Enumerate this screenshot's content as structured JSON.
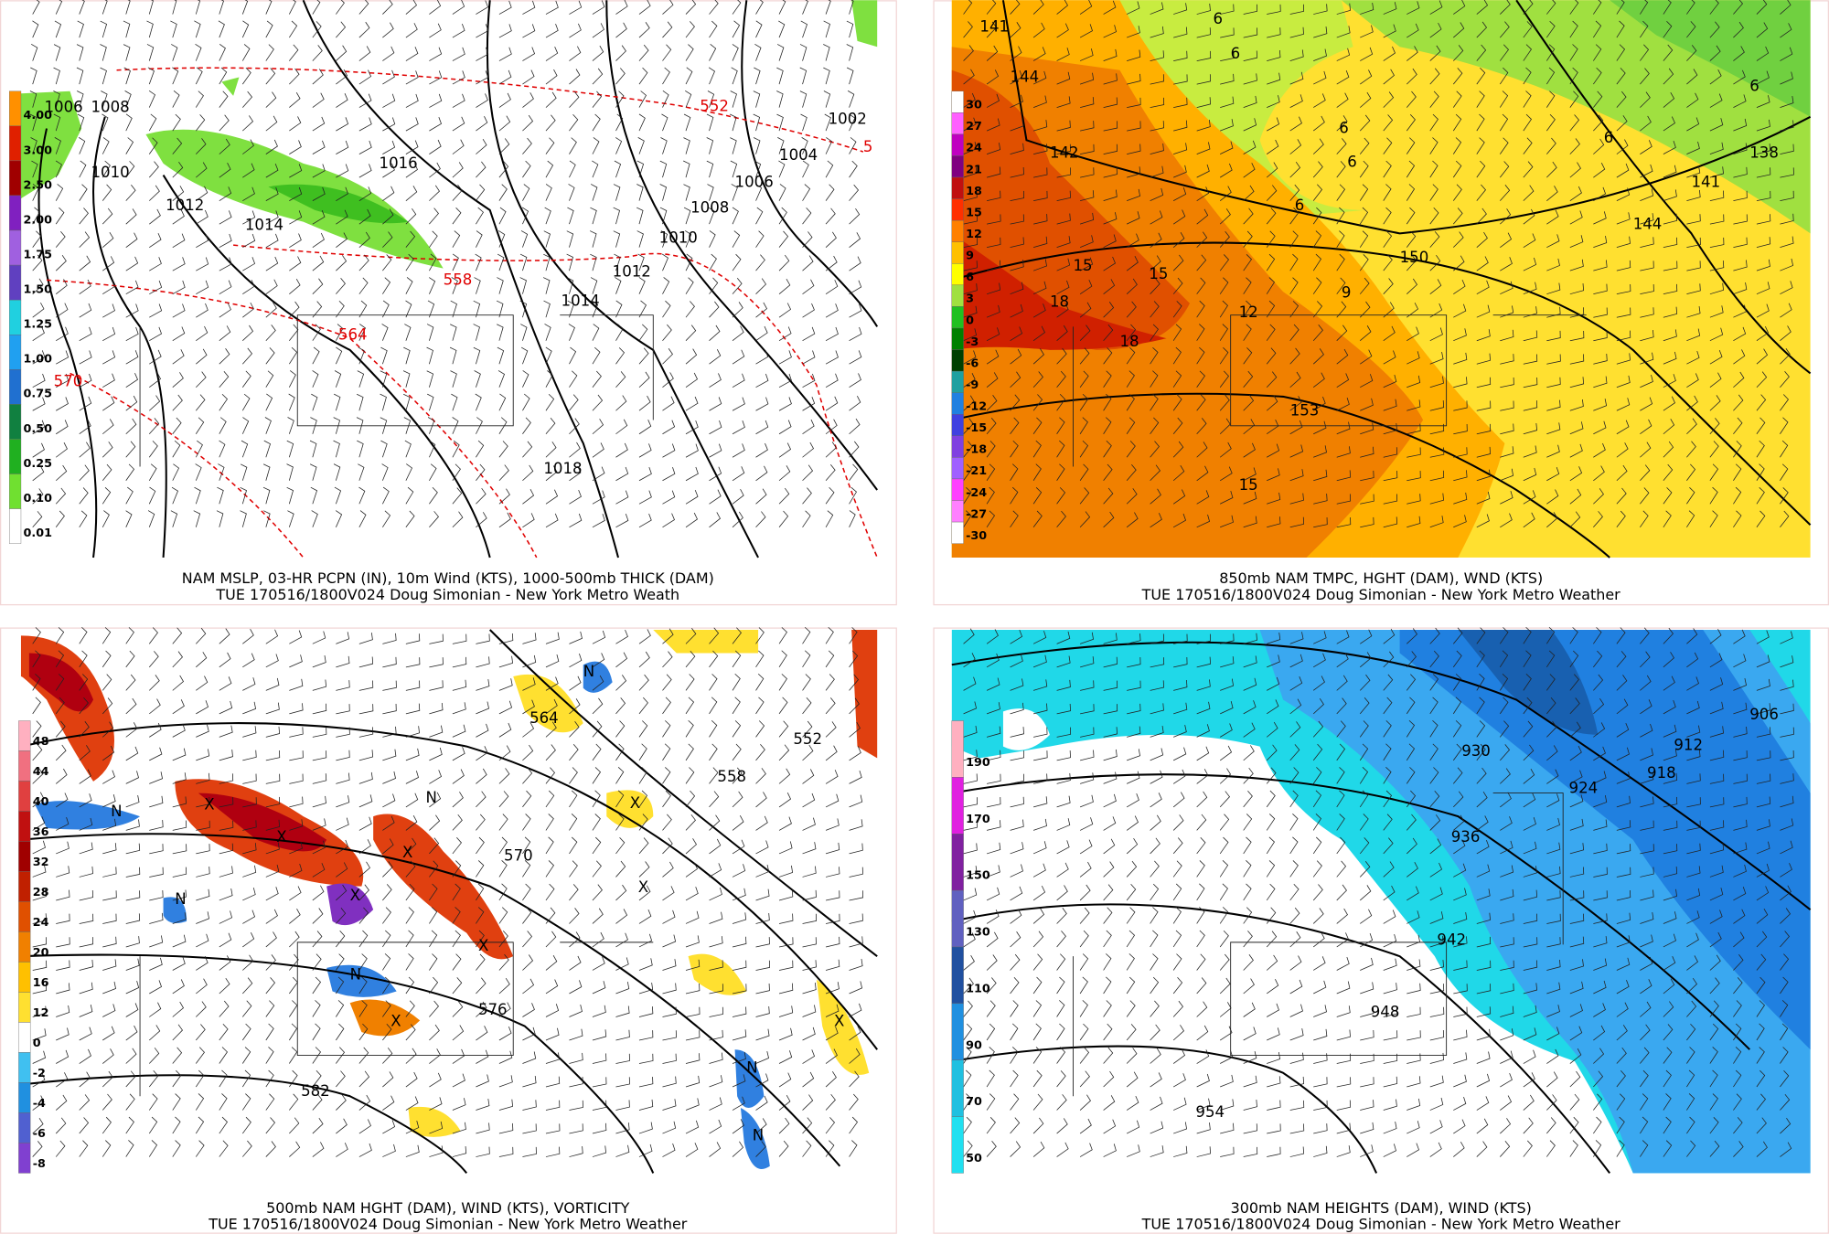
{
  "panels": [
    {
      "caption": [
        "NAM MSLP, 03-HR PCPN (IN), 10m Wind (KTS), 1000-500mb THICK (DAM)",
        "TUE 170516/1800V024 Doug Simonian - New York Metro Weath"
      ],
      "colorbar": [
        "4.00",
        "3.00",
        "2.50",
        "2.00",
        "1.75",
        "1.50",
        "1.25",
        "1.00",
        "0.75",
        "0.50",
        "0.25",
        "0.10",
        "0.01"
      ],
      "contour_labels": [
        "1006",
        "1008",
        "1010",
        "1012",
        "1014",
        "1016",
        "1002",
        "1004",
        "1006",
        "1008",
        "1010",
        "1012",
        "1014",
        "1018"
      ],
      "thickness_labels": [
        "552",
        "558",
        "564",
        "570",
        "5"
      ]
    },
    {
      "caption": [
        "850mb NAM TMPC, HGHT (DAM), WND (KTS)",
        "TUE 170516/1800V024 Doug Simonian - New York Metro Weather"
      ],
      "colorbar": [
        "30",
        "27",
        "24",
        "21",
        "18",
        "15",
        "12",
        "9",
        "6",
        "3",
        "0",
        "-3",
        "-6",
        "-9",
        "-12",
        "-15",
        "-18",
        "-21",
        "-24",
        "-27",
        "-30"
      ],
      "contour_labels": [
        "141",
        "144",
        "142",
        "138",
        "141",
        "144",
        "150",
        "153"
      ],
      "temperature_labels": [
        "6",
        "6",
        "6",
        "6",
        "6",
        "6",
        "6",
        "15",
        "15",
        "18",
        "18",
        "12",
        "9",
        "15"
      ]
    },
    {
      "caption": [
        "500mb NAM HGHT (DAM), WIND (KTS), VORTICITY",
        "TUE 170516/1800V024 Doug Simonian - New York Metro Weather"
      ],
      "colorbar": [
        "48",
        "44",
        "40",
        "36",
        "32",
        "28",
        "24",
        "20",
        "16",
        "12",
        "0",
        "-2",
        "-4",
        "-6",
        "-8"
      ],
      "contour_labels": [
        "564",
        "552",
        "558",
        "570",
        "576",
        "582"
      ],
      "markers": [
        "N",
        "N",
        "X",
        "X",
        "N",
        "X",
        "X",
        "N",
        "X",
        "N",
        "X",
        "X",
        "X",
        "N",
        "N",
        "X"
      ]
    },
    {
      "caption": [
        "300mb NAM HEIGHTS (DAM), WIND (KTS)",
        "TUE 170516/1800V024 Doug Simonian - New York Metro Weather"
      ],
      "colorbar": [
        "190",
        "170",
        "150",
        "130",
        "110",
        "90",
        "70",
        "50"
      ],
      "contour_labels": [
        "906",
        "912",
        "918",
        "924",
        "930",
        "936",
        "942",
        "948",
        "954"
      ]
    }
  ]
}
